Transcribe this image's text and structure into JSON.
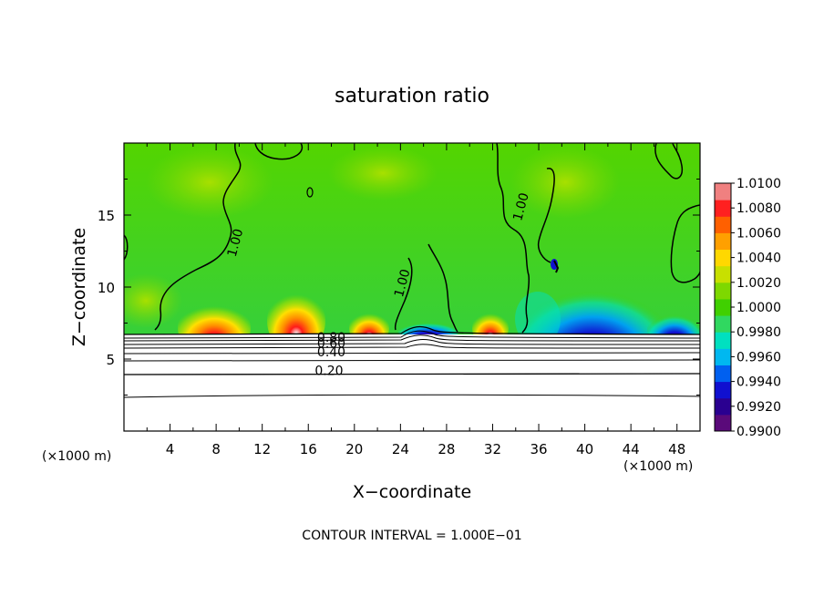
{
  "chart_data": {
    "type": "heatmap",
    "title": "saturation ratio",
    "xlabel": "X−coordinate",
    "ylabel": "Z−coordinate",
    "x_unit_left": "(×1000 m)",
    "x_unit_right": "(×1000 m)",
    "footer": "CONTOUR INTERVAL = 1.000E−01",
    "xlim": [
      0,
      50
    ],
    "ylim": [
      0,
      20
    ],
    "x_ticks": [
      4,
      8,
      12,
      16,
      20,
      24,
      28,
      32,
      36,
      40,
      44,
      48
    ],
    "y_ticks": [
      5,
      10,
      15
    ],
    "colorbar": {
      "min": 0.99,
      "max": 1.01,
      "labels": [
        "1.0100",
        "1.0080",
        "1.0060",
        "1.0040",
        "1.0020",
        "1.0000",
        "0.9980",
        "0.9960",
        "0.9940",
        "0.9920",
        "0.9900"
      ],
      "colors": [
        "#5a0a7a",
        "#2a0090",
        "#1010d0",
        "#0060f0",
        "#00b8f0",
        "#00e0c0",
        "#30d860",
        "#40d000",
        "#7ed800",
        "#c8e000",
        "#ffd800",
        "#ffa000",
        "#ff6000",
        "#ff2020",
        "#f08080"
      ]
    },
    "contour_labels": [
      {
        "text": "1.00",
        "x": 10.0,
        "z": 13.0
      },
      {
        "text": "1.00",
        "x": 24.5,
        "z": 10.2
      },
      {
        "text": "1.00",
        "x": 34.8,
        "z": 15.5
      },
      {
        "text": "0.80",
        "x": 18.0,
        "z": 6.2
      },
      {
        "text": "0.60",
        "x": 18.0,
        "z": 5.8
      },
      {
        "text": "0.40",
        "x": 18.0,
        "z": 5.2
      },
      {
        "text": "0.20",
        "x": 17.8,
        "z": 3.9
      }
    ],
    "field_description_values": {
      "boundary_layer_top_z": 6.8,
      "subsaturated_contours_z": [
        2.4,
        3.9,
        4.7,
        5.2,
        5.6,
        6.0,
        6.3,
        6.6
      ]
    }
  }
}
